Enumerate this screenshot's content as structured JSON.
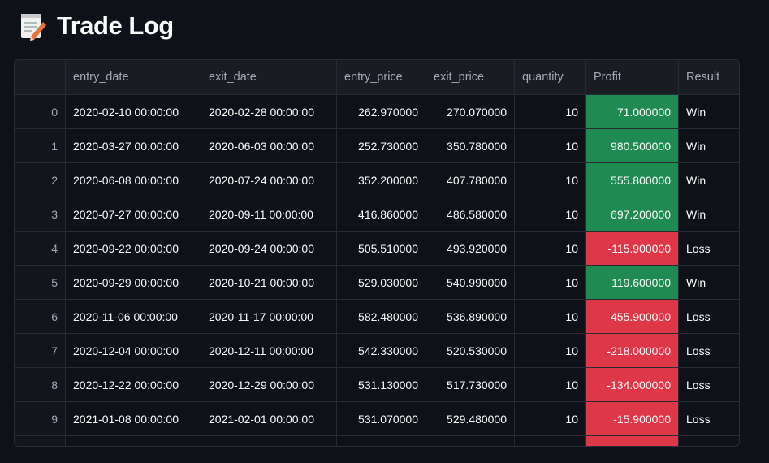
{
  "header": {
    "title": "Trade Log"
  },
  "table": {
    "columns": [
      "entry_date",
      "exit_date",
      "entry_price",
      "exit_price",
      "quantity",
      "Profit",
      "Result"
    ],
    "rows": [
      [
        "0",
        "2020-02-10 00:00:00",
        "2020-02-28 00:00:00",
        "262.970000",
        "270.070000",
        "10",
        "71.000000",
        "Win"
      ],
      [
        "1",
        "2020-03-27 00:00:00",
        "2020-06-03 00:00:00",
        "252.730000",
        "350.780000",
        "10",
        "980.500000",
        "Win"
      ],
      [
        "2",
        "2020-06-08 00:00:00",
        "2020-07-24 00:00:00",
        "352.200000",
        "407.780000",
        "10",
        "555.800000",
        "Win"
      ],
      [
        "3",
        "2020-07-27 00:00:00",
        "2020-09-11 00:00:00",
        "416.860000",
        "486.580000",
        "10",
        "697.200000",
        "Win"
      ],
      [
        "4",
        "2020-09-22 00:00:00",
        "2020-09-24 00:00:00",
        "505.510000",
        "493.920000",
        "10",
        "-115.900000",
        "Loss"
      ],
      [
        "5",
        "2020-09-29 00:00:00",
        "2020-10-21 00:00:00",
        "529.030000",
        "540.990000",
        "10",
        "119.600000",
        "Win"
      ],
      [
        "6",
        "2020-11-06 00:00:00",
        "2020-11-17 00:00:00",
        "582.480000",
        "536.890000",
        "10",
        "-455.900000",
        "Loss"
      ],
      [
        "7",
        "2020-12-04 00:00:00",
        "2020-12-11 00:00:00",
        "542.330000",
        "520.530000",
        "10",
        "-218.000000",
        "Loss"
      ],
      [
        "8",
        "2020-12-22 00:00:00",
        "2020-12-29 00:00:00",
        "531.130000",
        "517.730000",
        "10",
        "-134.000000",
        "Loss"
      ],
      [
        "9",
        "2021-01-08 00:00:00",
        "2021-02-01 00:00:00",
        "531.070000",
        "529.480000",
        "10",
        "-15.900000",
        "Loss"
      ]
    ],
    "profit_colors": {
      "positive": "#1f8a52",
      "negative": "#de3748"
    }
  }
}
